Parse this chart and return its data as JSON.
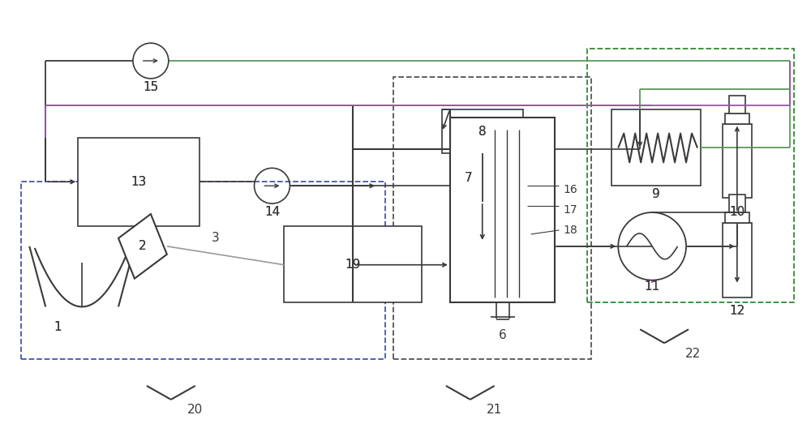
{
  "bg_color": "#ffffff",
  "lc": "#3a3a3a",
  "gc": "#5a9a5a",
  "pc": "#9955aa",
  "figsize": [
    10.0,
    5.49
  ],
  "dpi": 100
}
